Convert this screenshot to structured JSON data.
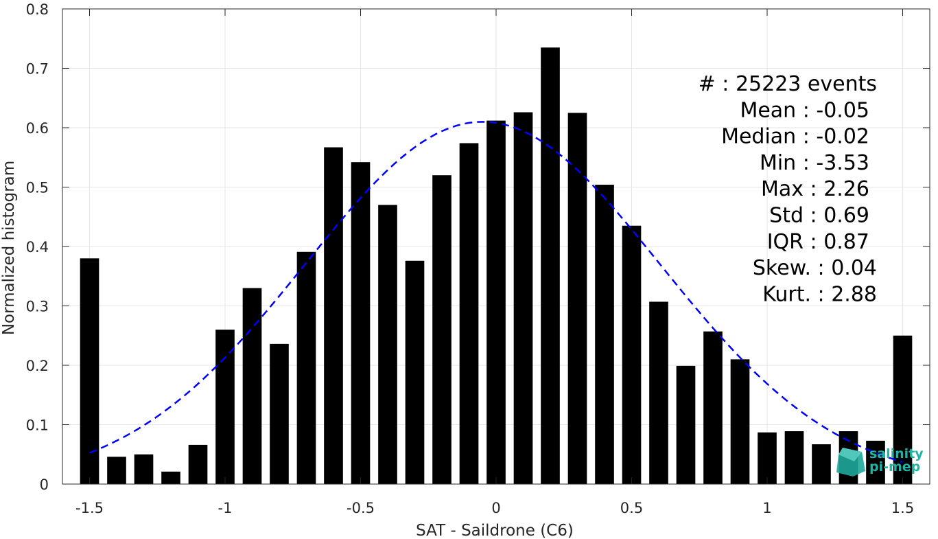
{
  "chart_data": {
    "type": "bar",
    "xlabel": "SAT - Saildrone (C6)",
    "ylabel": "Normalized histogram",
    "xlim": [
      -1.6,
      1.6
    ],
    "ylim": [
      0,
      0.8
    ],
    "x_ticks": [
      -1.5,
      -1,
      -0.5,
      0,
      0.5,
      1,
      1.5
    ],
    "x_tick_labels": [
      "-1.5",
      "-1",
      "-0.5",
      "0",
      "0.5",
      "1",
      "1.5"
    ],
    "y_ticks": [
      0,
      0.1,
      0.2,
      0.3,
      0.4,
      0.5,
      0.6,
      0.7,
      0.8
    ],
    "y_tick_labels": [
      "0",
      "0.1",
      "0.2",
      "0.3",
      "0.4",
      "0.5",
      "0.6",
      "0.7",
      "0.8"
    ],
    "grid": true,
    "bar_width": 0.07,
    "bar_color": "#000000",
    "bins": [
      -1.5,
      -1.4,
      -1.3,
      -1.2,
      -1.1,
      -1.0,
      -0.9,
      -0.8,
      -0.7,
      -0.6,
      -0.5,
      -0.4,
      -0.3,
      -0.2,
      -0.1,
      0.0,
      0.1,
      0.2,
      0.3,
      0.4,
      0.5,
      0.6,
      0.7,
      0.8,
      0.9,
      1.0,
      1.1,
      1.2,
      1.3,
      1.4,
      1.5
    ],
    "values": [
      0.38,
      0.046,
      0.05,
      0.021,
      0.066,
      0.26,
      0.33,
      0.236,
      0.391,
      0.567,
      0.542,
      0.47,
      0.376,
      0.52,
      0.574,
      0.612,
      0.626,
      0.735,
      0.625,
      0.504,
      0.435,
      0.307,
      0.199,
      0.257,
      0.21,
      0.087,
      0.089,
      0.067,
      0.089,
      0.073,
      0.25
    ],
    "fit_curve": {
      "style": "dashed",
      "color": "#0000ff",
      "mean": -0.05,
      "std": 0.655,
      "peak": 0.61,
      "x_range": [
        -1.5,
        1.5
      ]
    },
    "stats": [
      {
        "label": "#  : 25223 events"
      },
      {
        "label": "Mean : -0.05"
      },
      {
        "label": "Median : -0.02"
      },
      {
        "label": "Min : -3.53"
      },
      {
        "label": "Max : 2.26"
      },
      {
        "label": "Std : 0.69"
      },
      {
        "label": "IQR : 0.87"
      },
      {
        "label": "Skew. : 0.04"
      },
      {
        "label": "Kurt. : 2.88"
      }
    ]
  },
  "logo": {
    "line1": "salinity",
    "line2": "pi-mep",
    "color": "#1fb5a5"
  }
}
